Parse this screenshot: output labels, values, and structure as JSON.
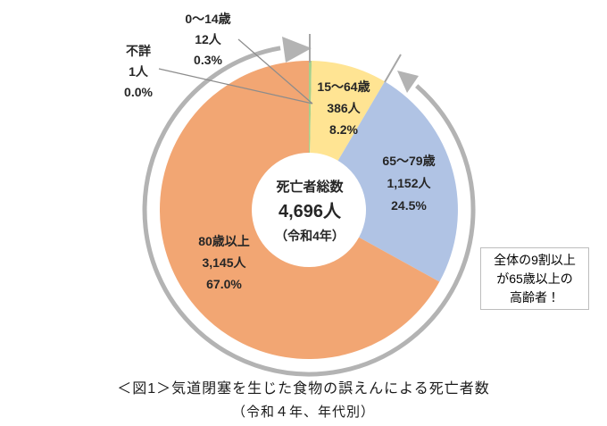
{
  "chart_data": {
    "type": "pie",
    "donut": true,
    "title": "＜図1＞気道閉塞を生じた食物の誤えんによる死亡者数",
    "subtitle": "（令和４年、年代別）",
    "center": {
      "label": "死亡者総数",
      "total": "4,696人",
      "note": "（令和4年）"
    },
    "slices": [
      {
        "label": "0〜14歳",
        "count": "12人",
        "percent": "0.3%",
        "value": 12,
        "share": 0.3,
        "color": "#a6d08c"
      },
      {
        "label": "15〜64歳",
        "count": "386人",
        "percent": "8.2%",
        "value": 386,
        "share": 8.2,
        "color": "#ffe493"
      },
      {
        "label": "65〜79歳",
        "count": "1,152人",
        "percent": "24.5%",
        "value": 1152,
        "share": 24.5,
        "color": "#b0c3e4"
      },
      {
        "label": "80歳以上",
        "count": "3,145人",
        "percent": "67.0%",
        "value": 3145,
        "share": 67.0,
        "color": "#f2a673"
      },
      {
        "label": "不詳",
        "count": "1人",
        "percent": "0.0%",
        "value": 1,
        "share": 0.0,
        "color": "#d9d9d9"
      }
    ],
    "annotation_lines": [
      "全体の9割以上",
      "が65歳以上の",
      "高齢者！"
    ],
    "legend_position": "none",
    "colors": {
      "ring_arrow": "#b3b3b3",
      "leader_line": "#8c8c8c",
      "tick": "#a6a6a6"
    },
    "geometry_note": "donut starts at 12 o'clock, clockwise"
  }
}
